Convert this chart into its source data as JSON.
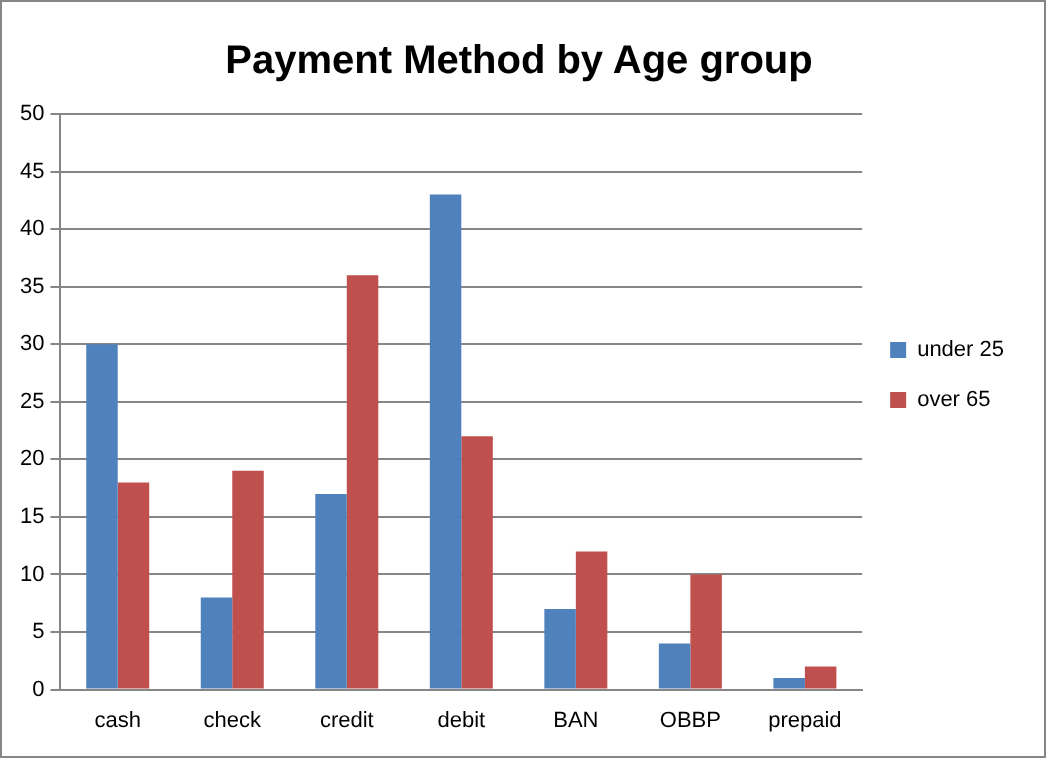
{
  "chart_data": {
    "type": "bar",
    "title": "Payment Method by Age group",
    "categories": [
      "cash",
      "check",
      "credit",
      "debit",
      "BAN",
      "OBBP",
      "prepaid"
    ],
    "series": [
      {
        "name": "under 25",
        "color": "#4f81bd",
        "values": [
          30,
          8,
          17,
          43,
          7,
          4,
          1
        ]
      },
      {
        "name": "over 65",
        "color": "#c0504d",
        "values": [
          18,
          19,
          36,
          22,
          12,
          10,
          2
        ]
      }
    ],
    "ylim": [
      0,
      50
    ],
    "yticks": [
      0,
      5,
      10,
      15,
      20,
      25,
      30,
      35,
      40,
      45,
      50
    ],
    "grid": "y",
    "legend": "right"
  }
}
